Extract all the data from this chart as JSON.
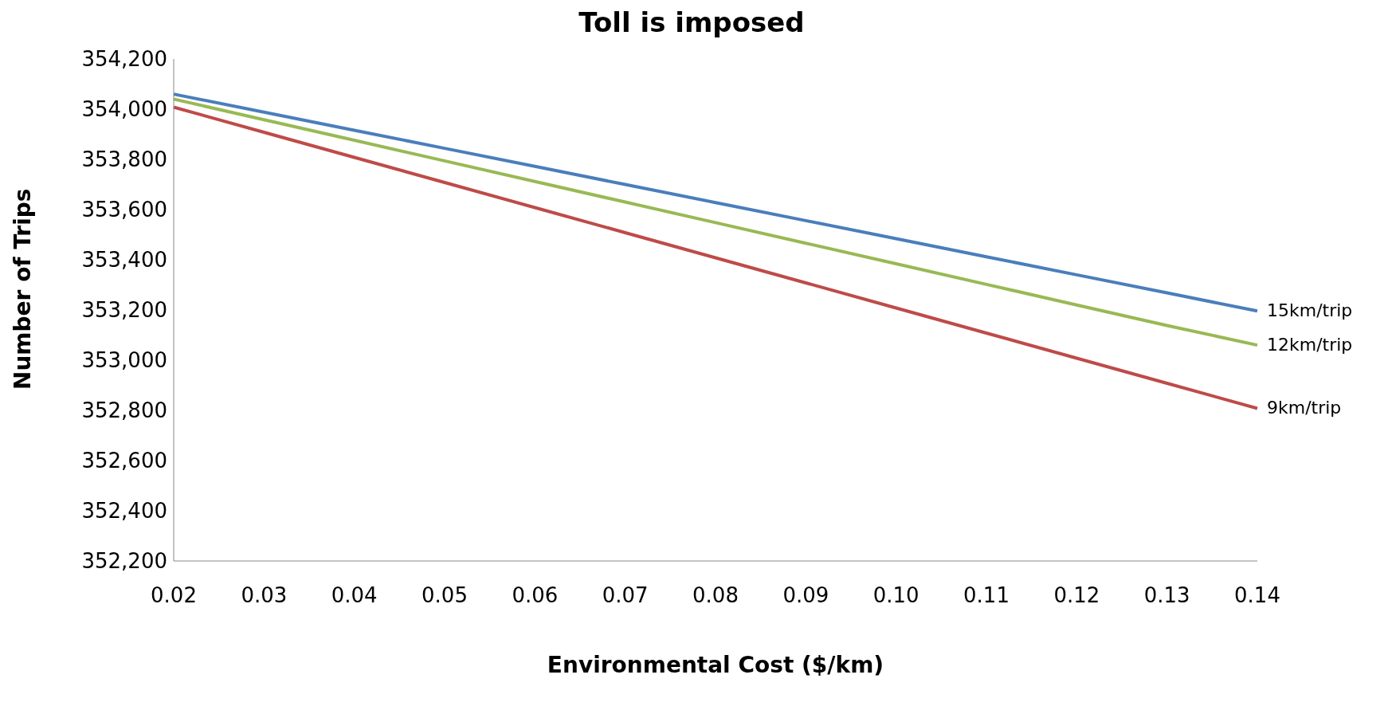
{
  "chart_data": {
    "type": "line",
    "title": "Toll is imposed",
    "xlabel": "Environmental Cost ($/km)",
    "ylabel": "Number of Trips",
    "categories": [
      "0.02",
      "0.03",
      "0.04",
      "0.05",
      "0.06",
      "0.07",
      "0.08",
      "0.09",
      "0.10",
      "0.11",
      "0.12",
      "0.13",
      "0.14"
    ],
    "series": [
      {
        "name": "15km/trip",
        "color": "#4a7ebb",
        "values": [
          354060,
          353988,
          353916,
          353844,
          353772,
          353700,
          353628,
          353556,
          353484,
          353412,
          353340,
          353268,
          353196
        ]
      },
      {
        "name": "12km/trip",
        "color": "#98b954",
        "values": [
          354040,
          353958,
          353876,
          353794,
          353712,
          353630,
          353548,
          353466,
          353384,
          353302,
          353220,
          353138,
          353060
        ]
      },
      {
        "name": "9km/trip",
        "color": "#be4b48",
        "values": [
          354008,
          353908,
          353808,
          353708,
          353608,
          353508,
          353408,
          353308,
          353208,
          353108,
          353008,
          352908,
          352808
        ]
      }
    ],
    "ylim": [
      352200,
      354200
    ],
    "yticks": [
      {
        "value": 352200,
        "label": "352,200"
      },
      {
        "value": 352400,
        "label": "352,400"
      },
      {
        "value": 352600,
        "label": "352,600"
      },
      {
        "value": 352800,
        "label": "352,800"
      },
      {
        "value": 353000,
        "label": "353,000"
      },
      {
        "value": 353200,
        "label": "353,200"
      },
      {
        "value": 353400,
        "label": "353,400"
      },
      {
        "value": 353600,
        "label": "353,600"
      },
      {
        "value": 353800,
        "label": "353,800"
      },
      {
        "value": 354000,
        "label": "354,000"
      },
      {
        "value": 354200,
        "label": "354,200"
      }
    ],
    "grid": false,
    "legend": false,
    "marker": "none",
    "line_style": "solid"
  }
}
